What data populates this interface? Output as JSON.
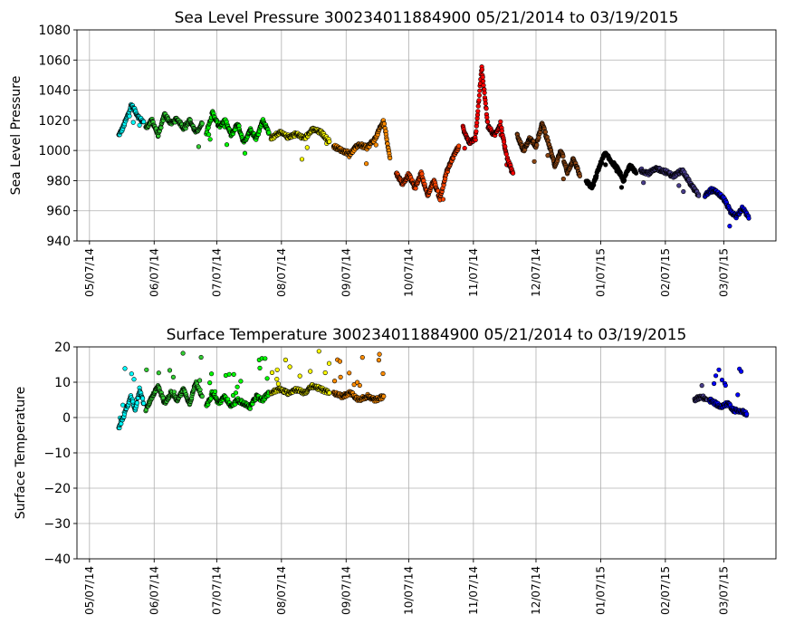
{
  "chart_data": [
    {
      "type": "scatter",
      "title": "Sea Level Pressure 300234011884900  05/21/2014 to 03/19/2015",
      "xlabel": "",
      "ylabel": "Sea Level Pressure",
      "ylim": [
        940,
        1080
      ],
      "yticks": [
        940,
        960,
        980,
        1000,
        1020,
        1040,
        1060,
        1080
      ],
      "xlim": [
        "2014-05-01",
        "2015-04-01"
      ],
      "xticks": [
        "2014-05-07",
        "2014-06-07",
        "2014-07-07",
        "2014-08-07",
        "2014-09-07",
        "2014-10-07",
        "2014-11-07",
        "2014-12-07",
        "2015-01-07",
        "2015-02-07",
        "2015-03-07"
      ],
      "xtick_labels": [
        "05/07/14",
        "06/07/14",
        "07/07/14",
        "08/07/14",
        "09/07/14",
        "10/07/14",
        "11/07/14",
        "12/07/14",
        "01/07/15",
        "02/07/15",
        "03/07/15"
      ],
      "grid": true,
      "series": [
        {
          "color": "#00ffff",
          "points": [
            [
              "2014-05-21",
              1010
            ],
            [
              "2014-05-23",
              1015
            ],
            [
              "2014-05-25",
              1022
            ],
            [
              "2014-05-27",
              1030
            ],
            [
              "2014-05-29",
              1026
            ],
            [
              "2014-05-31",
              1021
            ],
            [
              "2014-06-02",
              1019
            ]
          ]
        },
        {
          "color": "#32cd32",
          "points": [
            [
              "2014-06-03",
              1015
            ],
            [
              "2014-06-06",
              1020
            ],
            [
              "2014-06-09",
              1010
            ],
            [
              "2014-06-12",
              1024
            ],
            [
              "2014-06-15",
              1018
            ],
            [
              "2014-06-18",
              1021
            ],
            [
              "2014-06-21",
              1015
            ],
            [
              "2014-06-24",
              1020
            ],
            [
              "2014-06-27",
              1012
            ],
            [
              "2014-06-30",
              1018
            ]
          ]
        },
        {
          "color": "#00ff00",
          "points": [
            [
              "2014-07-02",
              1012
            ],
            [
              "2014-07-05",
              1025
            ],
            [
              "2014-07-08",
              1016
            ],
            [
              "2014-07-11",
              1020
            ],
            [
              "2014-07-14",
              1010
            ],
            [
              "2014-07-17",
              1018
            ],
            [
              "2014-07-20",
              1005
            ],
            [
              "2014-07-23",
              1014
            ],
            [
              "2014-07-26",
              1008
            ],
            [
              "2014-07-29",
              1020
            ],
            [
              "2014-08-01",
              1012
            ]
          ]
        },
        {
          "color": "#ffff00",
          "points": [
            [
              "2014-08-02",
              1008
            ],
            [
              "2014-08-06",
              1012
            ],
            [
              "2014-08-10",
              1009
            ],
            [
              "2014-08-14",
              1011
            ],
            [
              "2014-08-18",
              1008
            ],
            [
              "2014-08-22",
              1014
            ],
            [
              "2014-08-26",
              1012
            ],
            [
              "2014-08-30",
              1006
            ]
          ]
        },
        {
          "color": "#ff8c00",
          "points": [
            [
              "2014-09-01",
              1003
            ],
            [
              "2014-09-05",
              1000
            ],
            [
              "2014-09-09",
              998
            ],
            [
              "2014-09-13",
              1004
            ],
            [
              "2014-09-17",
              1002
            ],
            [
              "2014-09-21",
              1008
            ],
            [
              "2014-09-25",
              1020
            ],
            [
              "2014-09-28",
              995
            ]
          ]
        },
        {
          "color": "#ff4500",
          "points": [
            [
              "2014-10-01",
              985
            ],
            [
              "2014-10-04",
              978
            ],
            [
              "2014-10-07",
              984
            ],
            [
              "2014-10-10",
              975
            ],
            [
              "2014-10-13",
              985
            ],
            [
              "2014-10-16",
              970
            ],
            [
              "2014-10-19",
              980
            ],
            [
              "2014-10-22",
              968
            ],
            [
              "2014-10-25",
              985
            ],
            [
              "2014-10-28",
              995
            ],
            [
              "2014-10-31",
              1003
            ]
          ]
        },
        {
          "color": "#ff0000",
          "points": [
            [
              "2014-11-02",
              1015
            ],
            [
              "2014-11-05",
              1005
            ],
            [
              "2014-11-08",
              1008
            ],
            [
              "2014-11-11",
              1055
            ],
            [
              "2014-11-14",
              1016
            ],
            [
              "2014-11-17",
              1010
            ],
            [
              "2014-11-20",
              1018
            ],
            [
              "2014-11-23",
              995
            ],
            [
              "2014-11-26",
              985
            ]
          ]
        },
        {
          "color": "#8b4513",
          "points": [
            [
              "2014-11-28",
              1010
            ],
            [
              "2014-12-01",
              1000
            ],
            [
              "2014-12-04",
              1008
            ],
            [
              "2014-12-07",
              1003
            ],
            [
              "2014-12-10",
              1018
            ],
            [
              "2014-12-13",
              1005
            ],
            [
              "2014-12-16",
              990
            ],
            [
              "2014-12-19",
              1000
            ],
            [
              "2014-12-22",
              985
            ],
            [
              "2014-12-25",
              995
            ],
            [
              "2014-12-28",
              983
            ]
          ]
        },
        {
          "color": "#000000",
          "points": [
            [
              "2014-12-31",
              980
            ],
            [
              "2015-01-03",
              975
            ],
            [
              "2015-01-06",
              988
            ],
            [
              "2015-01-09",
              998
            ],
            [
              "2015-01-12",
              993
            ],
            [
              "2015-01-15",
              988
            ],
            [
              "2015-01-18",
              980
            ],
            [
              "2015-01-21",
              990
            ],
            [
              "2015-01-24",
              985
            ]
          ]
        },
        {
          "color": "#483d8b",
          "points": [
            [
              "2015-01-26",
              987
            ],
            [
              "2015-01-30",
              985
            ],
            [
              "2015-02-03",
              988
            ],
            [
              "2015-02-07",
              986
            ],
            [
              "2015-02-11",
              983
            ],
            [
              "2015-02-15",
              987
            ],
            [
              "2015-02-19",
              978
            ],
            [
              "2015-02-23",
              970
            ]
          ]
        },
        {
          "color": "#0000ff",
          "points": [
            [
              "2015-02-26",
              970
            ],
            [
              "2015-03-01",
              974
            ],
            [
              "2015-03-04",
              972
            ],
            [
              "2015-03-07",
              968
            ],
            [
              "2015-03-10",
              960
            ],
            [
              "2015-03-13",
              956
            ],
            [
              "2015-03-16",
              962
            ],
            [
              "2015-03-19",
              955
            ]
          ]
        }
      ]
    },
    {
      "type": "scatter",
      "title": "Surface Temperature 300234011884900  05/21/2014 to 03/19/2015",
      "xlabel": "",
      "ylabel": "Surface Temperature",
      "ylim": [
        -40,
        20
      ],
      "yticks": [
        -40,
        -30,
        -20,
        -10,
        0,
        10,
        20
      ],
      "ytick_labels": [
        "−40",
        "−30",
        "−20",
        "−10",
        "0",
        "10",
        "20"
      ],
      "xlim": [
        "2014-05-01",
        "2015-04-01"
      ],
      "xticks": [
        "2014-05-07",
        "2014-06-07",
        "2014-07-07",
        "2014-08-07",
        "2014-09-07",
        "2014-10-07",
        "2014-11-07",
        "2014-12-07",
        "2015-01-07",
        "2015-02-07",
        "2015-03-07"
      ],
      "xtick_labels": [
        "05/07/14",
        "06/07/14",
        "07/07/14",
        "08/07/14",
        "09/07/14",
        "10/07/14",
        "11/07/14",
        "12/07/14",
        "01/07/15",
        "02/07/15",
        "03/07/15"
      ],
      "grid": true,
      "series": [
        {
          "color": "#00ffff",
          "points": [
            [
              "2014-05-21",
              -3
            ],
            [
              "2014-05-23",
              0
            ],
            [
              "2014-05-25",
              3
            ],
            [
              "2014-05-27",
              6
            ],
            [
              "2014-05-29",
              2
            ],
            [
              "2014-05-31",
              8
            ],
            [
              "2014-06-02",
              4
            ]
          ]
        },
        {
          "color": "#32cd32",
          "points": [
            [
              "2014-06-03",
              2
            ],
            [
              "2014-06-06",
              6
            ],
            [
              "2014-06-09",
              9
            ],
            [
              "2014-06-12",
              4
            ],
            [
              "2014-06-15",
              7
            ],
            [
              "2014-06-18",
              5
            ],
            [
              "2014-06-21",
              8
            ],
            [
              "2014-06-24",
              4
            ],
            [
              "2014-06-27",
              10
            ],
            [
              "2014-06-30",
              6
            ]
          ]
        },
        {
          "color": "#00ff00",
          "points": [
            [
              "2014-07-02",
              3
            ],
            [
              "2014-07-05",
              7
            ],
            [
              "2014-07-08",
              4
            ],
            [
              "2014-07-11",
              6
            ],
            [
              "2014-07-14",
              3
            ],
            [
              "2014-07-17",
              5
            ],
            [
              "2014-07-20",
              4
            ],
            [
              "2014-07-23",
              3
            ],
            [
              "2014-07-26",
              6
            ],
            [
              "2014-07-29",
              5
            ],
            [
              "2014-08-01",
              7
            ]
          ]
        },
        {
          "color": "#ffff00",
          "points": [
            [
              "2014-08-02",
              7
            ],
            [
              "2014-08-06",
              8
            ],
            [
              "2014-08-10",
              7
            ],
            [
              "2014-08-14",
              8
            ],
            [
              "2014-08-18",
              7
            ],
            [
              "2014-08-22",
              9
            ],
            [
              "2014-08-26",
              8
            ],
            [
              "2014-08-30",
              7
            ]
          ]
        },
        {
          "color": "#ff8c00",
          "points": [
            [
              "2014-09-01",
              7
            ],
            [
              "2014-09-05",
              6
            ],
            [
              "2014-09-09",
              7
            ],
            [
              "2014-09-13",
              5
            ],
            [
              "2014-09-17",
              6
            ],
            [
              "2014-09-21",
              5
            ],
            [
              "2014-09-25",
              6
            ]
          ]
        },
        {
          "color": "#483d8b",
          "points": [
            [
              "2015-02-21",
              5
            ],
            [
              "2015-02-24",
              6
            ],
            [
              "2015-02-27",
              5
            ]
          ]
        },
        {
          "color": "#0000ff",
          "points": [
            [
              "2015-02-28",
              5
            ],
            [
              "2015-03-03",
              4
            ],
            [
              "2015-03-06",
              3
            ],
            [
              "2015-03-09",
              4
            ],
            [
              "2015-03-12",
              2
            ],
            [
              "2015-03-15",
              2
            ],
            [
              "2015-03-18",
              1
            ]
          ]
        }
      ]
    }
  ]
}
